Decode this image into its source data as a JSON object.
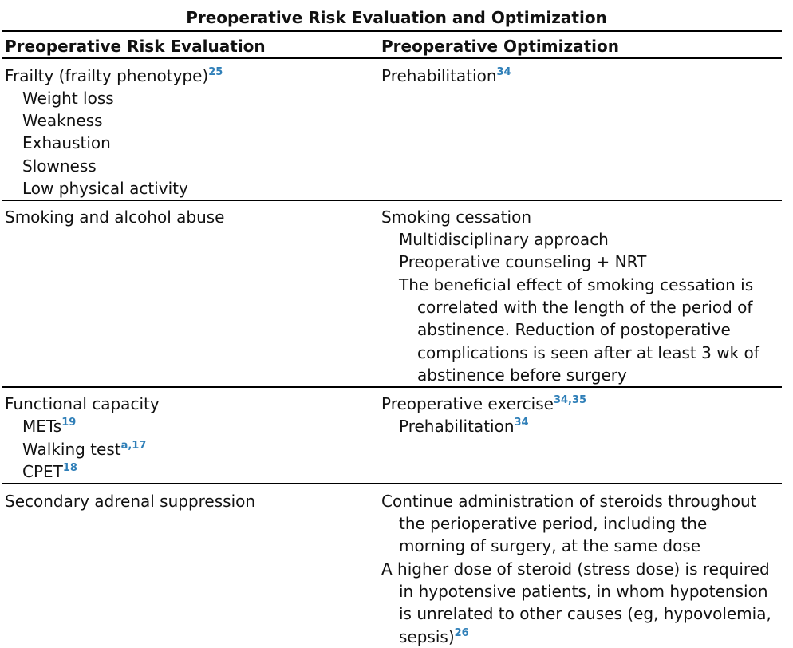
{
  "table": {
    "title": "Preoperative Risk Evaluation and Optimization",
    "headers": [
      "Preoperative Risk Evaluation",
      "Preoperative Optimization"
    ],
    "rows": [
      {
        "evaluation": {
          "main": "Frailty (frailty phenotype)",
          "main_ref": "25",
          "items": [
            "Weight loss",
            "Weakness",
            "Exhaustion",
            "Slowness",
            "Low physical activity"
          ]
        },
        "optimization": {
          "main": "Prehabilitation",
          "main_ref": "34"
        }
      },
      {
        "evaluation": {
          "main": "Smoking and alcohol abuse"
        },
        "optimization": {
          "main": "Smoking cessation",
          "items": [
            "Multidisciplinary approach",
            "Preoperative counseling + NRT",
            "The beneficial effect of smoking cessation is",
            "correlated with the length of the period of",
            "abstinence. Reduction of postoperative",
            "complications is seen after at least 3 wk of",
            "abstinence before surgery"
          ]
        }
      },
      {
        "evaluation": {
          "main": "Functional capacity",
          "items": [
            "METs",
            "Walking test",
            "CPET"
          ],
          "item_refs": [
            "19",
            "a,17",
            "18"
          ]
        },
        "optimization": {
          "main": "Preoperative exercise",
          "main_ref": "34,35",
          "items": [
            "Prehabilitation"
          ],
          "item_refs": [
            "34"
          ]
        }
      },
      {
        "evaluation": {
          "main": "Secondary adrenal suppression"
        },
        "optimization": {
          "lines": [
            "Continue administration of steroids throughout",
            "the perioperative period, including the",
            "morning of surgery, at the same dose",
            "A higher dose of steroid (stress dose) is required",
            "in hypotensive patients, in whom hypotension",
            "is unrelated to other causes (eg, hypovolemia,",
            "sepsis)"
          ],
          "last_ref": "26"
        }
      }
    ]
  },
  "colors": {
    "text": "#111111",
    "reference": "#2f7fb8",
    "rule": "#000000"
  }
}
